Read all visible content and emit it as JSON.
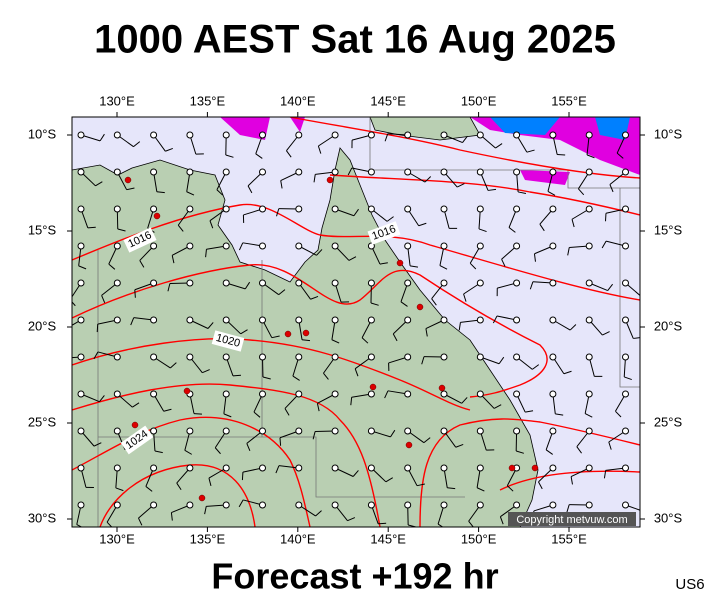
{
  "title": "1000 AEST Sat 16 Aug 2025",
  "footer": "Forecast +192 hr",
  "region": "US6",
  "copyright": "Copyright metvuw.com",
  "lon_labels": [
    "130°E",
    "135°E",
    "140°E",
    "145°E",
    "150°E",
    "155°E"
  ],
  "lat_labels": [
    "10°S",
    "15°S",
    "20°S",
    "25°S",
    "30°S"
  ],
  "isobar_labels": [
    "1016",
    "1016",
    "1020",
    "1024"
  ]
}
